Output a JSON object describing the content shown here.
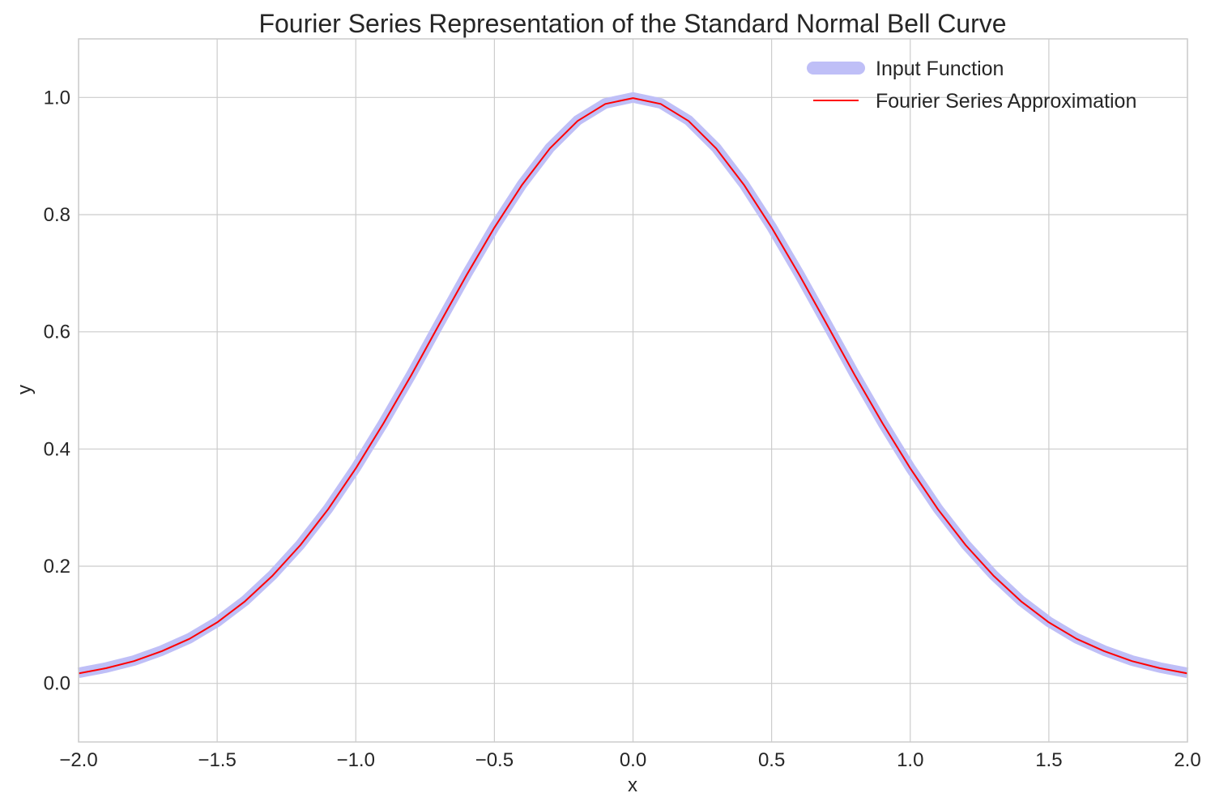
{
  "chart_data": {
    "type": "line",
    "title": "Fourier Series Representation of the Standard Normal Bell Curve",
    "xlabel": "x",
    "ylabel": "y",
    "xlim": [
      -2.0,
      2.0
    ],
    "ylim": [
      -0.1,
      1.1
    ],
    "x_ticks": [
      -2.0,
      -1.5,
      -1.0,
      -0.5,
      0.0,
      0.5,
      1.0,
      1.5,
      2.0
    ],
    "x_tick_labels": [
      "−2.0",
      "−1.5",
      "−1.0",
      "−0.5",
      "0.0",
      "0.5",
      "1.0",
      "1.5",
      "2.0"
    ],
    "y_ticks": [
      0.0,
      0.2,
      0.4,
      0.6,
      0.8,
      1.0
    ],
    "y_tick_labels": [
      "0.0",
      "0.2",
      "0.4",
      "0.6",
      "0.8",
      "1.0"
    ],
    "grid": true,
    "legend_position": "top-right",
    "x": [
      -2.0,
      -1.9,
      -1.8,
      -1.7,
      -1.6,
      -1.5,
      -1.4,
      -1.3,
      -1.2,
      -1.1,
      -1.0,
      -0.9,
      -0.8,
      -0.7,
      -0.6,
      -0.5,
      -0.4,
      -0.3,
      -0.2,
      -0.1,
      0.0,
      0.1,
      0.2,
      0.3,
      0.4,
      0.5,
      0.6,
      0.7,
      0.8,
      0.9,
      1.0,
      1.1,
      1.2,
      1.3,
      1.4,
      1.5,
      1.6,
      1.7,
      1.8,
      1.9,
      2.0
    ],
    "series": [
      {
        "name": "Input Function",
        "color": "#bfbff7",
        "y": [
          0.018,
          0.027,
          0.039,
          0.056,
          0.077,
          0.105,
          0.141,
          0.185,
          0.237,
          0.298,
          0.368,
          0.445,
          0.527,
          0.613,
          0.698,
          0.779,
          0.852,
          0.914,
          0.961,
          0.99,
          1.0,
          0.99,
          0.961,
          0.914,
          0.852,
          0.779,
          0.698,
          0.613,
          0.527,
          0.445,
          0.368,
          0.298,
          0.237,
          0.185,
          0.141,
          0.105,
          0.077,
          0.056,
          0.039,
          0.027,
          0.018
        ]
      },
      {
        "name": "Fourier Series Approximation",
        "color": "#ff0000",
        "y": [
          0.017,
          0.026,
          0.038,
          0.055,
          0.076,
          0.104,
          0.14,
          0.184,
          0.236,
          0.297,
          0.367,
          0.444,
          0.526,
          0.612,
          0.697,
          0.778,
          0.851,
          0.913,
          0.96,
          0.989,
          0.999,
          0.989,
          0.96,
          0.913,
          0.851,
          0.778,
          0.697,
          0.612,
          0.526,
          0.444,
          0.367,
          0.297,
          0.236,
          0.184,
          0.14,
          0.104,
          0.076,
          0.055,
          0.038,
          0.026,
          0.017
        ]
      }
    ]
  }
}
